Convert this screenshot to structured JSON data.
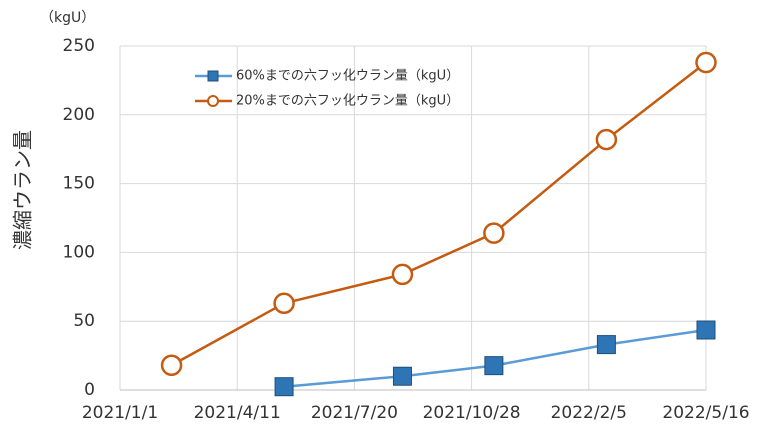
{
  "chart_data": {
    "type": "line",
    "y_label": "濃縮ウラン量",
    "unit_label": "（kgU）",
    "x": [
      "2021-02-14",
      "2021-05-21",
      "2021-08-30",
      "2021-11-16",
      "2022-02-20",
      "2022-05-16"
    ],
    "series": [
      {
        "name": "60%までの六フッ化ウラン量（kgU）",
        "color": "#2e75b6",
        "values": [
          null,
          2.4,
          10,
          17.7,
          33,
          43.6
        ]
      },
      {
        "name": "20%までの六フッ化ウラン量（kgU）",
        "color": "#c55a11",
        "values": [
          18,
          63,
          84,
          114,
          182,
          238
        ]
      }
    ],
    "xlim": [
      "2021-01-01",
      "2022-05-16"
    ],
    "xticks": [
      {
        "value": "2021-01-01",
        "label": "2021/1/1"
      },
      {
        "value": "2021-04-11",
        "label": "2021/4/11"
      },
      {
        "value": "2021-07-20",
        "label": "2021/7/20"
      },
      {
        "value": "2021-10-28",
        "label": "2021/10/28"
      },
      {
        "value": "2022-02-05",
        "label": "2022/2/5"
      },
      {
        "value": "2022-05-16",
        "label": "2022/5/16"
      }
    ],
    "ylim": [
      0,
      250
    ],
    "yticks": [
      0,
      50,
      100,
      150,
      200,
      250
    ],
    "grid": true,
    "legend": "top-left"
  }
}
